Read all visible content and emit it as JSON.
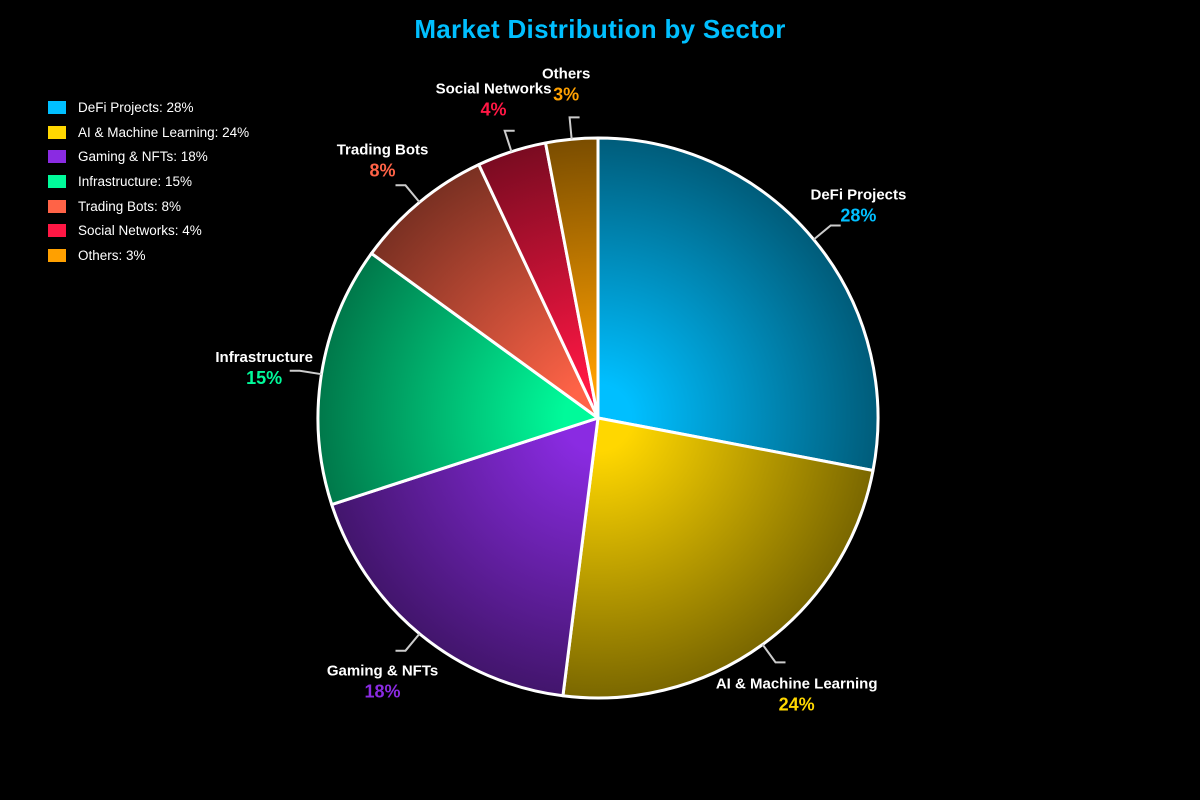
{
  "page": {
    "background": "#000000"
  },
  "header": {
    "title": "Market Distribution by Sector",
    "title_color": "#00BFFF"
  },
  "legend": {
    "position": "upper-left",
    "items": [
      {
        "label": "DeFi Projects: 28%",
        "color": "#00BFFF"
      },
      {
        "label": "AI & Machine Learning: 24%",
        "color": "#FFD700"
      },
      {
        "label": "Gaming & NFTs: 18%",
        "color": "#8A2BE2"
      },
      {
        "label": "Infrastructure: 15%",
        "color": "#00FA9A"
      },
      {
        "label": "Trading Bots: 8%",
        "color": "#FF6347"
      },
      {
        "label": "Social Networks: 4%",
        "color": "#FF1744"
      },
      {
        "label": "Others: 3%",
        "color": "#FFA000"
      }
    ]
  },
  "chart_data": {
    "type": "pie",
    "title": "Market Distribution by Sector",
    "start_angle_deg": 0,
    "direction": "clockwise",
    "legend_position": "upper-left",
    "total": 100,
    "slices": [
      {
        "label": "DeFi Projects",
        "value": 28,
        "pct_label": "28%",
        "color": "#00BFFF"
      },
      {
        "label": "AI & Machine Learning",
        "value": 24,
        "pct_label": "24%",
        "color": "#FFD700"
      },
      {
        "label": "Gaming & NFTs",
        "value": 18,
        "pct_label": "18%",
        "color": "#8A2BE2"
      },
      {
        "label": "Infrastructure",
        "value": 15,
        "pct_label": "15%",
        "color": "#00FA9A"
      },
      {
        "label": "Trading Bots",
        "value": 8,
        "pct_label": "8%",
        "color": "#FF6347"
      },
      {
        "label": "Social Networks",
        "value": 4,
        "pct_label": "4%",
        "color": "#FF1744"
      },
      {
        "label": "Others",
        "value": 3,
        "pct_label": "3%",
        "color": "#FFA000"
      }
    ],
    "style": {
      "slice_stroke": "#FFFFFF",
      "slice_stroke_width": 3,
      "edge_darken_factor": 0.48,
      "leader_line_color": "#CCCCCC",
      "name_text_color": "#FFFFFF"
    }
  }
}
